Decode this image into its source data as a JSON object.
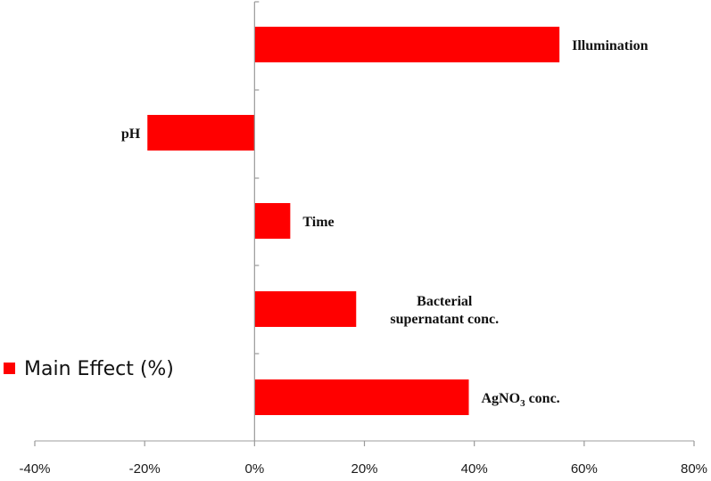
{
  "chart_data": {
    "type": "bar",
    "orientation": "horizontal",
    "categories": [
      "Illumination",
      "pH",
      "Time",
      "Bacterial supernatant conc.",
      "AgNO3 conc."
    ],
    "category_label_lines": [
      [
        "Illumination"
      ],
      [
        "pH"
      ],
      [
        "Time"
      ],
      [
        "Bacterial",
        "supernatant conc."
      ],
      [
        "AgNO3 conc."
      ]
    ],
    "series": [
      {
        "name": "Main Effect (%)",
        "values": [
          55.5,
          -19.5,
          6.5,
          18.5,
          39
        ],
        "color": "#ff0000"
      }
    ],
    "xlim": [
      -40,
      80
    ],
    "x_ticks": [
      -40,
      -20,
      0,
      20,
      40,
      60,
      80
    ],
    "x_tick_labels": [
      "-40%",
      "-20%",
      "0%",
      "20%",
      "40%",
      "60%",
      "80%"
    ],
    "grid": false,
    "legend": "left",
    "legend_label": "Main Effect (%)"
  }
}
